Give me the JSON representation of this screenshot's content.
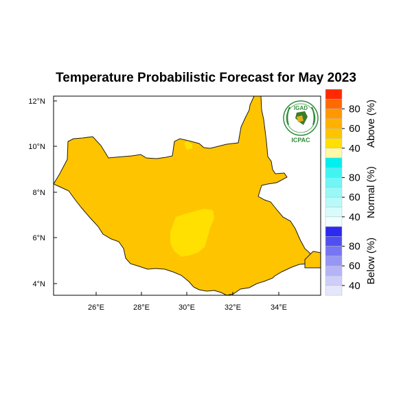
{
  "title": "Temperature Probabilistic Forecast for May 2023",
  "map": {
    "region": "South Sudan",
    "lon_ticks": [
      "26°E",
      "28°E",
      "30°E",
      "32°E",
      "34°E"
    ],
    "lat_ticks": [
      "12°N",
      "10°N",
      "8°N",
      "6°N",
      "4°N"
    ],
    "fill_above_40_color": "#FFC400",
    "fill_above_35_color": "#FFE000",
    "border_color": "#1a1a1a"
  },
  "colorbar": {
    "groups": [
      {
        "label": "Above (%)",
        "ticks": [
          "80",
          "60",
          "40"
        ],
        "colors": [
          "#FF2A00",
          "#FF6A00",
          "#FF9800",
          "#FFB000",
          "#FFC400",
          "#FFE000",
          "#FFF8A8"
        ]
      },
      {
        "label": "Normal (%)",
        "ticks": [
          "80",
          "60",
          "40"
        ],
        "colors": [
          "#00F0F0",
          "#40F4F4",
          "#70F6F6",
          "#98F8F8",
          "#B8FAFA",
          "#D8FCFC",
          "#F2FEFE"
        ]
      },
      {
        "label": "Below (%)",
        "ticks": [
          "80",
          "60",
          "40"
        ],
        "colors": [
          "#2A2AF0",
          "#5050F0",
          "#7676F2",
          "#9696F4",
          "#B4B4F6",
          "#CECEF8",
          "#E6E6FB"
        ]
      }
    ]
  },
  "logo": {
    "top_text": "IGAD",
    "bottom_text": "ICPAC"
  }
}
